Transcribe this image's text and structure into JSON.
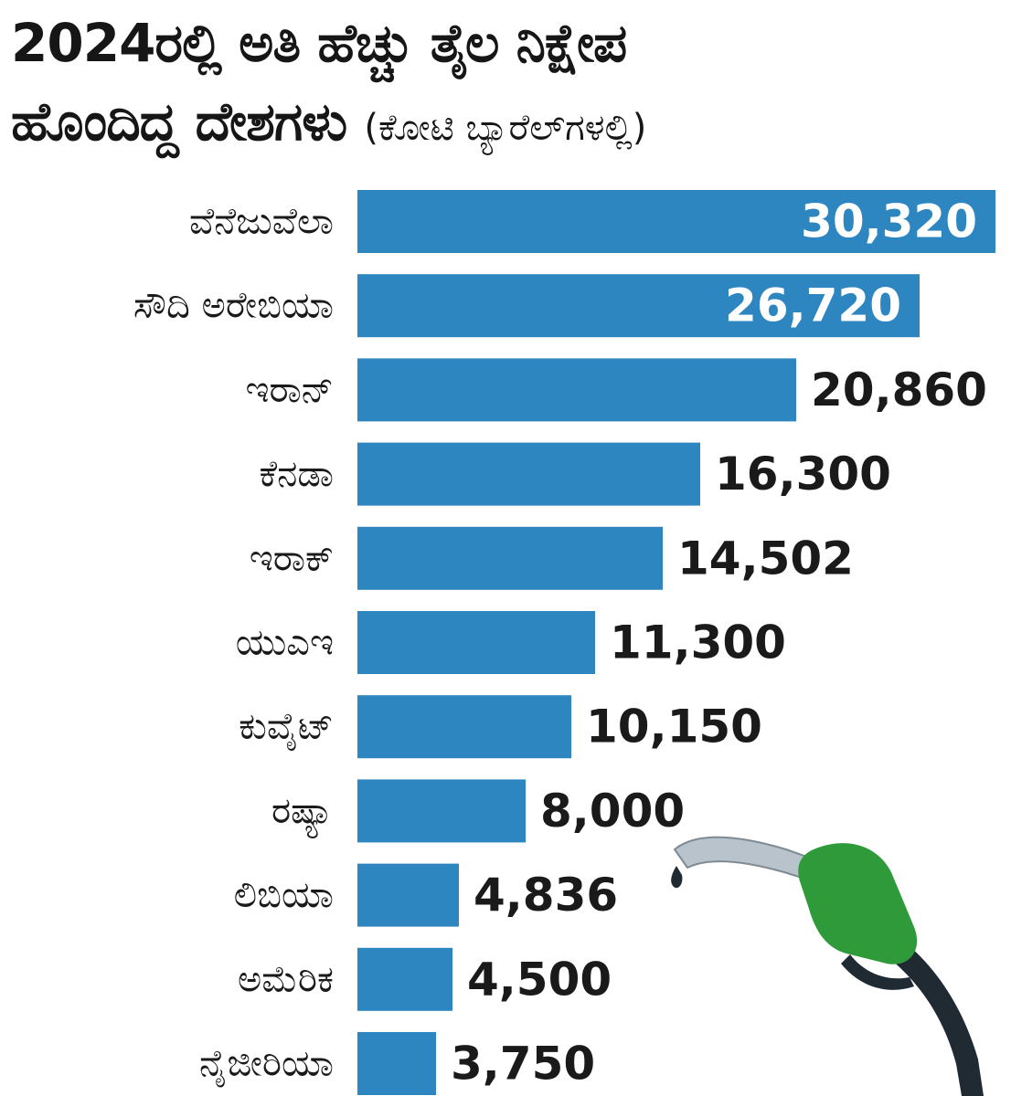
{
  "title": {
    "line1": "2024ರಲ್ಲಿ ಅತಿ ಹೆಚ್ಚು ತೈಲ ನಿಕ್ಷೇಪ",
    "line2": "ಹೊಂದಿದ್ದ ದೇಶಗಳು",
    "unit": "(ಕೋಟಿ ಬ್ಯಾರೆಲ್‌ಗಳಲ್ಲಿ)"
  },
  "colors": {
    "bar": "#2e86c1",
    "label_dark": "#1a1a1a",
    "label_light": "#ffffff",
    "nozzle_green": "#2f9a3a",
    "hose": "#1f2a33"
  },
  "icons": [
    "fuel-nozzle-icon"
  ],
  "chart_data": {
    "type": "bar",
    "orientation": "horizontal",
    "title": "2024ರಲ್ಲಿ ಅತಿ ಹೆಚ್ಚು ತೈಲ ನಿಕ್ಷೇಪ ಹೊಂದಿದ್ದ ದೇಶಗಳು",
    "subtitle": "(ಕೋಟಿ ಬ್ಯಾರೆಲ್‌ಗಳಲ್ಲಿ)",
    "categories": [
      "ವೆನೆಜುವೆಲಾ",
      "ಸೌದಿ ಅರೇಬಿಯಾ",
      "ಇರಾನ್",
      "ಕೆನಡಾ",
      "ಇರಾಕ್",
      "ಯುಎಇ",
      "ಕುವೈಟ್",
      "ರಷ್ಯಾ",
      "ಲಿಬಿಯಾ",
      "ಅಮೆರಿಕ",
      "ನೈಜೀರಿಯಾ"
    ],
    "values": [
      30320,
      26720,
      20860,
      16300,
      14502,
      11300,
      10150,
      8000,
      4836,
      4500,
      3750
    ],
    "value_labels": [
      "30,320",
      "26,720",
      "20,860",
      "16,300",
      "14,502",
      "11,300",
      "10,150",
      "8,000",
      "4,836",
      "4,500",
      "3,750"
    ],
    "xlim": [
      0,
      30320
    ],
    "grid": false,
    "legend": "none"
  }
}
